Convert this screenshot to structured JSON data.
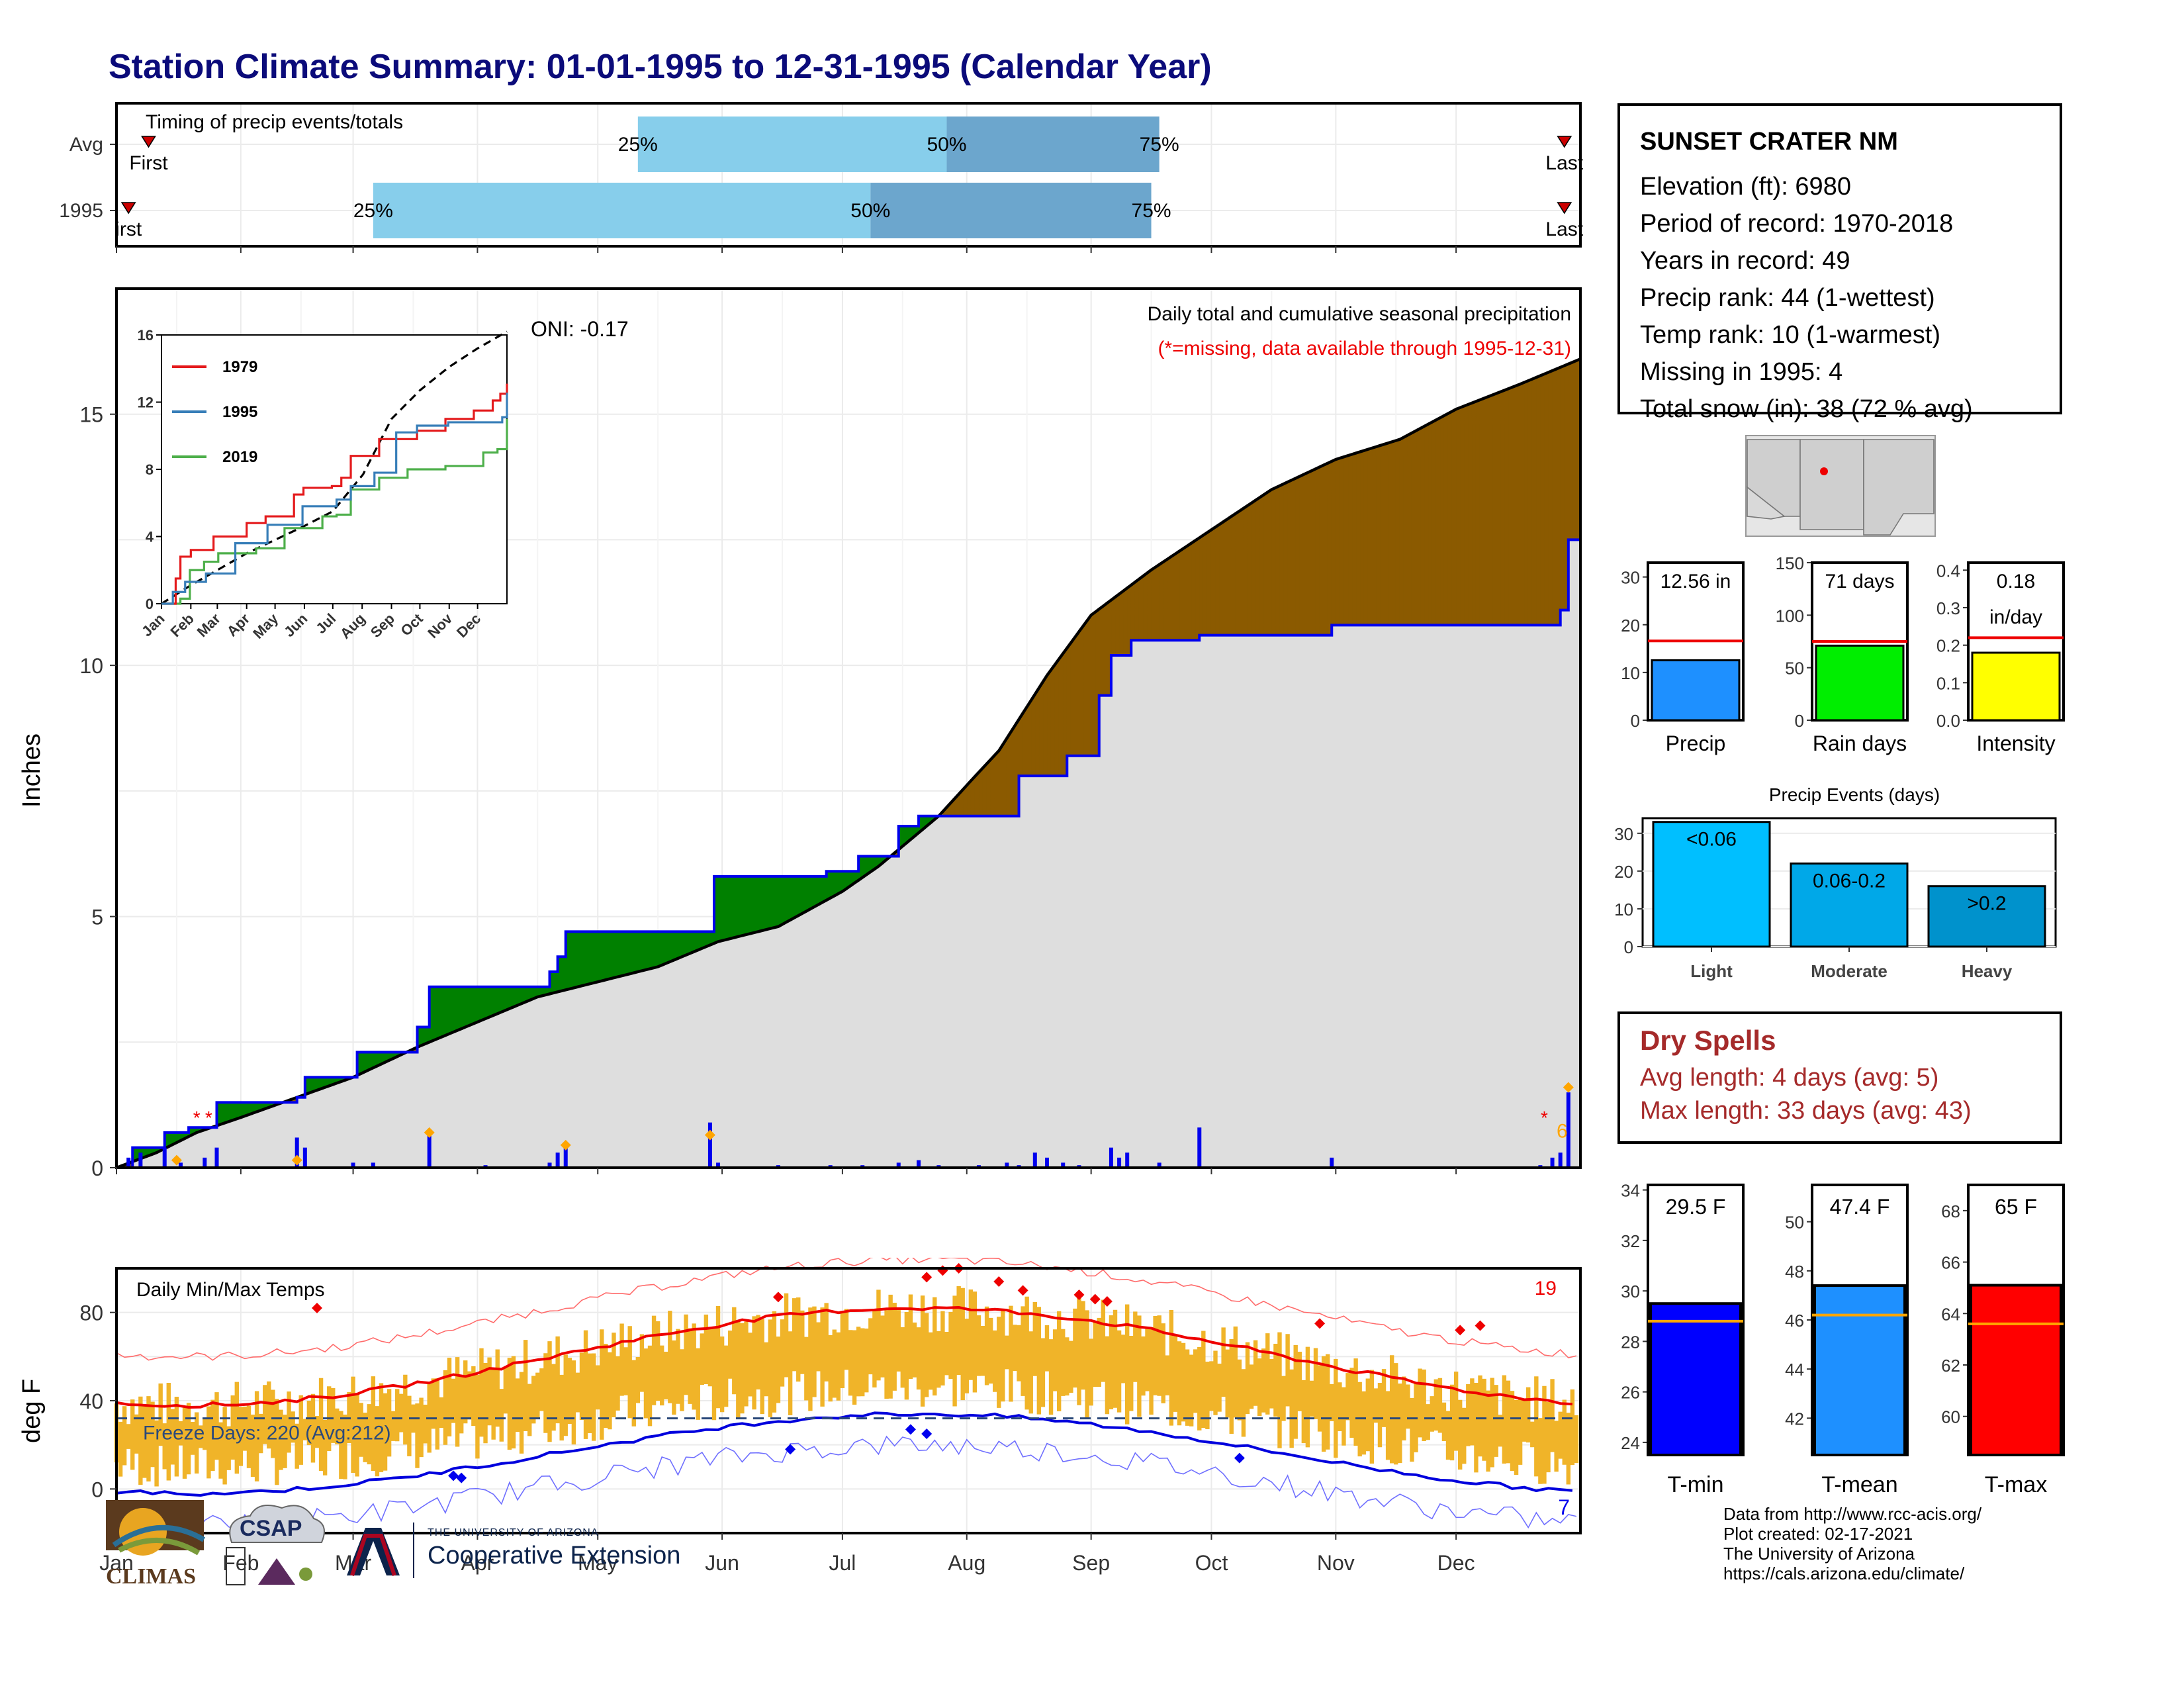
{
  "title": "Station Climate Summary: 01-01-1995 to 12-31-1995 (Calendar Year)",
  "months": [
    "Jan",
    "Feb",
    "Mar",
    "Apr",
    "May",
    "Jun",
    "Jul",
    "Aug",
    "Sep",
    "Oct",
    "Nov",
    "Dec"
  ],
  "timing": {
    "label": "Timing of precip events/totals",
    "rows": [
      {
        "name": "Avg",
        "first_label": "First",
        "last_label": "Last",
        "p25": "25%",
        "p50": "50%",
        "p75": "75%",
        "first_doy": 8,
        "last_doy": 361,
        "q25_doy": 130,
        "q50_doy": 207,
        "q75_doy": 260
      },
      {
        "name": "1995",
        "first_label": "irst",
        "last_label": "Last",
        "p25": "25%",
        "p50": "50%",
        "p75": "75%",
        "first_doy": 3,
        "last_doy": 361,
        "q25_doy": 64,
        "q50_doy": 188,
        "q75_doy": 258
      }
    ]
  },
  "precip_panel": {
    "ylabel": "Inches",
    "yticks": [
      "0",
      "5",
      "10",
      "15"
    ],
    "header": "Daily total and cumulative seasonal precipitation",
    "missing_note": "(*=missing, data available through 1995-12-31)",
    "oni": "ONI: -0.17",
    "end_count": "6",
    "ylim": [
      0,
      17.5
    ],
    "avg_cumulative": [
      [
        0,
        0
      ],
      [
        10,
        0.3
      ],
      [
        20,
        0.7
      ],
      [
        31,
        1.0
      ],
      [
        45,
        1.4
      ],
      [
        59,
        1.8
      ],
      [
        75,
        2.4
      ],
      [
        90,
        2.9
      ],
      [
        105,
        3.4
      ],
      [
        120,
        3.7
      ],
      [
        135,
        4.0
      ],
      [
        150,
        4.5
      ],
      [
        165,
        4.8
      ],
      [
        181,
        5.5
      ],
      [
        190,
        6.0
      ],
      [
        205,
        7.0
      ],
      [
        213,
        7.7
      ],
      [
        220,
        8.3
      ],
      [
        232,
        9.8
      ],
      [
        243,
        11.0
      ],
      [
        258,
        11.9
      ],
      [
        273,
        12.7
      ],
      [
        288,
        13.5
      ],
      [
        304,
        14.1
      ],
      [
        320,
        14.5
      ],
      [
        334,
        15.1
      ],
      [
        350,
        15.6
      ],
      [
        365,
        16.1
      ]
    ],
    "obs_cumulative": [
      [
        0,
        0
      ],
      [
        4,
        0.4
      ],
      [
        10,
        0.4
      ],
      [
        12,
        0.7
      ],
      [
        18,
        0.8
      ],
      [
        25,
        1.3
      ],
      [
        45,
        1.4
      ],
      [
        47,
        1.8
      ],
      [
        60,
        2.3
      ],
      [
        75,
        2.8
      ],
      [
        78,
        3.6
      ],
      [
        108,
        3.9
      ],
      [
        110,
        4.2
      ],
      [
        112,
        4.7
      ],
      [
        147,
        4.7
      ],
      [
        149,
        5.8
      ],
      [
        177,
        5.9
      ],
      [
        185,
        6.2
      ],
      [
        195,
        6.8
      ],
      [
        200,
        7.0
      ],
      [
        218,
        7.0
      ],
      [
        225,
        7.8
      ],
      [
        237,
        8.2
      ],
      [
        245,
        9.4
      ],
      [
        248,
        10.2
      ],
      [
        253,
        10.5
      ],
      [
        268,
        10.5
      ],
      [
        270,
        10.6
      ],
      [
        300,
        10.6
      ],
      [
        303,
        10.8
      ],
      [
        358,
        10.8
      ],
      [
        360,
        11.1
      ],
      [
        362,
        12.5
      ],
      [
        365,
        12.56
      ]
    ],
    "daily_bars": [
      [
        3,
        0.2
      ],
      [
        6,
        0.3
      ],
      [
        12,
        0.4
      ],
      [
        16,
        0.1
      ],
      [
        22,
        0.2
      ],
      [
        25,
        0.4
      ],
      [
        45,
        0.6
      ],
      [
        47,
        0.4
      ],
      [
        59,
        0.1
      ],
      [
        64,
        0.1
      ],
      [
        78,
        0.7
      ],
      [
        92,
        0.05
      ],
      [
        108,
        0.1
      ],
      [
        110,
        0.3
      ],
      [
        112,
        0.5
      ],
      [
        148,
        0.9
      ],
      [
        150,
        0.1
      ],
      [
        165,
        0.05
      ],
      [
        178,
        0.05
      ],
      [
        186,
        0.05
      ],
      [
        195,
        0.1
      ],
      [
        200,
        0.15
      ],
      [
        205,
        0.05
      ],
      [
        215,
        0.05
      ],
      [
        222,
        0.1
      ],
      [
        225,
        0.05
      ],
      [
        229,
        0.3
      ],
      [
        232,
        0.2
      ],
      [
        236,
        0.1
      ],
      [
        240,
        0.05
      ],
      [
        248,
        0.4
      ],
      [
        250,
        0.2
      ],
      [
        252,
        0.3
      ],
      [
        260,
        0.1
      ],
      [
        270,
        0.8
      ],
      [
        303,
        0.2
      ],
      [
        355,
        0.05
      ],
      [
        358,
        0.2
      ],
      [
        360,
        0.3
      ],
      [
        362,
        1.5
      ]
    ],
    "series": [
      {
        "name": "obs"
      },
      {
        "name": "avg"
      }
    ]
  },
  "inset": {
    "legend": [
      "1979",
      "1995",
      "2019"
    ],
    "colors": [
      "#e41a1c",
      "#377eb8",
      "#4daf4a"
    ],
    "yticks": [
      "0",
      "4",
      "8",
      "12",
      "16"
    ],
    "xticks": [
      "Jan",
      "Feb",
      "Mar",
      "Apr",
      "May",
      "Jun",
      "Jul",
      "Aug",
      "Sep",
      "Oct",
      "Nov",
      "Dec"
    ],
    "ylim": [
      0,
      16
    ],
    "y1979": [
      [
        0,
        0
      ],
      [
        15,
        1.5
      ],
      [
        20,
        2.8
      ],
      [
        31,
        3.2
      ],
      [
        55,
        4
      ],
      [
        90,
        4.8
      ],
      [
        110,
        5.2
      ],
      [
        140,
        6.5
      ],
      [
        150,
        6.9
      ],
      [
        180,
        7
      ],
      [
        190,
        7.5
      ],
      [
        200,
        8.8
      ],
      [
        230,
        9.8
      ],
      [
        270,
        10.3
      ],
      [
        300,
        11
      ],
      [
        330,
        11.5
      ],
      [
        350,
        12.1
      ],
      [
        358,
        12.5
      ],
      [
        365,
        13.1
      ]
    ],
    "y1995": [
      [
        0,
        0
      ],
      [
        12,
        0.7
      ],
      [
        25,
        1.3
      ],
      [
        47,
        1.8
      ],
      [
        78,
        3.6
      ],
      [
        112,
        4.7
      ],
      [
        149,
        5.8
      ],
      [
        185,
        6.2
      ],
      [
        200,
        7.0
      ],
      [
        225,
        7.8
      ],
      [
        248,
        10.2
      ],
      [
        270,
        10.6
      ],
      [
        303,
        10.8
      ],
      [
        360,
        11.1
      ],
      [
        365,
        12.56
      ]
    ],
    "y2019": [
      [
        0,
        0
      ],
      [
        20,
        0.3
      ],
      [
        30,
        2
      ],
      [
        45,
        2.5
      ],
      [
        60,
        3
      ],
      [
        100,
        3.3
      ],
      [
        125,
        3.3
      ],
      [
        130,
        4.5
      ],
      [
        170,
        5.2
      ],
      [
        185,
        5.3
      ],
      [
        200,
        6.8
      ],
      [
        230,
        7.5
      ],
      [
        260,
        8
      ],
      [
        300,
        8.2
      ],
      [
        340,
        9
      ],
      [
        355,
        9.2
      ],
      [
        365,
        11
      ]
    ],
    "yavg": [
      [
        0,
        0
      ],
      [
        31,
        1.1
      ],
      [
        59,
        2
      ],
      [
        90,
        3
      ],
      [
        120,
        3.8
      ],
      [
        150,
        4.6
      ],
      [
        181,
        5.5
      ],
      [
        213,
        7.7
      ],
      [
        243,
        11
      ],
      [
        273,
        12.7
      ],
      [
        304,
        14.1
      ],
      [
        334,
        15.2
      ],
      [
        365,
        16.2
      ]
    ]
  },
  "station": {
    "name": "SUNSET CRATER NM",
    "lines": [
      "Elevation (ft): 6980",
      "Period of record: 1970-2018",
      "Years in record: 49",
      "Precip rank: 44 (1-wettest)",
      "Temp rank: 10 (1-warmest)",
      "Missing in 1995: 4",
      "Total snow (in): 38 (72 % avg)"
    ]
  },
  "mini_bars": [
    {
      "label": "Precip",
      "value_text": "12.56 in",
      "value": 12.56,
      "avg": 16.6,
      "ymax": 33,
      "ticks": [
        "0",
        "10",
        "20",
        "30"
      ],
      "tick_vals": [
        0,
        10,
        20,
        30
      ],
      "color": "#1e90ff"
    },
    {
      "label": "Rain days",
      "value_text": "71 days",
      "value": 71,
      "avg": 75,
      "ymax": 150,
      "ticks": [
        "0",
        "50",
        "100",
        "150"
      ],
      "tick_vals": [
        0,
        50,
        100,
        150
      ],
      "color": "#00ee00"
    },
    {
      "label": "Intensity",
      "value_text": "0.18",
      "value_text2": "in/day",
      "value": 0.18,
      "avg": 0.22,
      "ymax": 0.42,
      "ticks": [
        "0.0",
        "0.1",
        "0.2",
        "0.3",
        "0.4"
      ],
      "tick_vals": [
        0,
        0.1,
        0.2,
        0.3,
        0.4
      ],
      "color": "#ffff00"
    }
  ],
  "events": {
    "title": "Precip Events (days)",
    "categories": [
      "Light",
      "Moderate",
      "Heavy"
    ],
    "bar_labels": [
      "<0.06",
      "0.06-0.2",
      ">0.2"
    ],
    "values": [
      33,
      22,
      16
    ],
    "ticks": [
      "0",
      "10",
      "20",
      "30"
    ],
    "tick_vals": [
      0,
      10,
      20,
      30
    ],
    "ymax": 34,
    "colors": [
      "#00bfff",
      "#00a8e8",
      "#0092cc"
    ]
  },
  "dry_spells": {
    "title": "Dry Spells",
    "avg_line": "Avg length: 4 days (avg: 5)",
    "max_line": "Max length: 33 days (avg: 43)"
  },
  "temp_panel": {
    "ylabel": "deg F",
    "label": "Daily Min/Max Temps",
    "freeze": "Freeze Days: 220 (Avg:212)",
    "yticks": [
      "0",
      "40",
      "80"
    ],
    "ylim": [
      -20,
      100
    ],
    "count_hot": "19",
    "count_cold": "7",
    "freeze_line": 32
  },
  "temp_bars": [
    {
      "label": "T-min",
      "value_text": "29.5 F",
      "value": 29.5,
      "avg": 28.8,
      "ymin": 23.5,
      "ymax": 34.2,
      "ticks": [
        "24",
        "26",
        "28",
        "30",
        "32",
        "34"
      ],
      "tick_vals": [
        24,
        26,
        28,
        30,
        32,
        34
      ],
      "color": "#0000ff"
    },
    {
      "label": "T-mean",
      "value_text": "47.4 F",
      "value": 47.4,
      "avg": 46.2,
      "ymin": 40.5,
      "ymax": 51.5,
      "ticks": [
        "42",
        "44",
        "46",
        "48",
        "50"
      ],
      "tick_vals": [
        42,
        44,
        46,
        48,
        50
      ],
      "color": "#1e90ff"
    },
    {
      "label": "T-max",
      "value_text": "65 F",
      "value": 65.1,
      "avg": 63.6,
      "ymin": 58.5,
      "ymax": 69,
      "ticks": [
        "60",
        "62",
        "64",
        "66",
        "68"
      ],
      "tick_vals": [
        60,
        62,
        64,
        66,
        68
      ],
      "color": "#ff0000"
    }
  ],
  "footer": {
    "lines": [
      "Data from http://www.rcc-acis.org/",
      "Plot created: 02-17-2021",
      "The University of Arizona",
      "https://cals.arizona.edu/climate/"
    ],
    "climas": "CLIMAS",
    "csap": "CSAP",
    "ua_small": "THE UNIVERSITY OF ARIZONA",
    "ua_big": "Cooperative Extension"
  }
}
